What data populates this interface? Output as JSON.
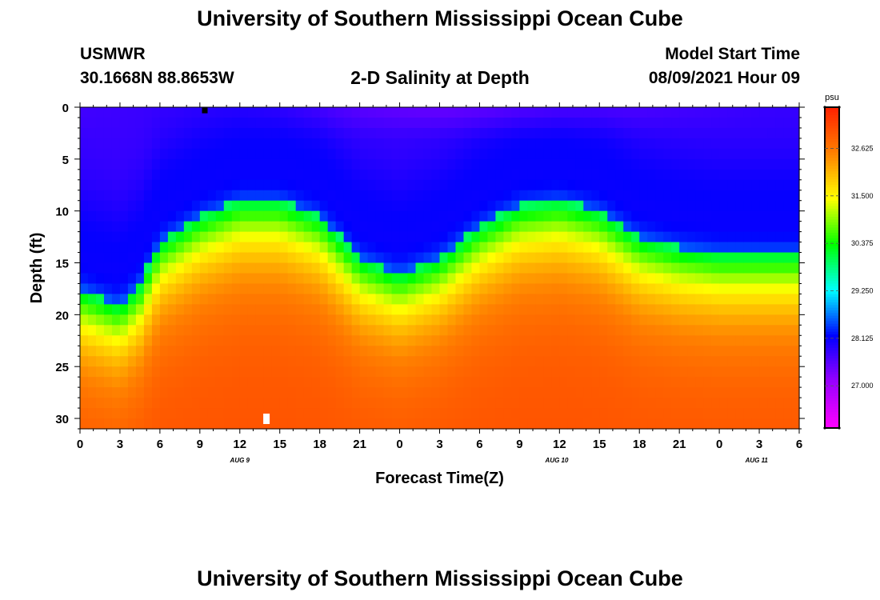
{
  "page": {
    "title": "University of Southern Mississippi Ocean Cube",
    "footer_title": "University of Southern Mississippi Ocean Cube"
  },
  "header": {
    "station": "USMWR",
    "coordinates": "30.1668N  88.8653W",
    "plot_title": "2-D Salinity at Depth",
    "model_start_label": "Model Start Time",
    "model_start_value": "08/09/2021 Hour 09"
  },
  "chart_data": {
    "type": "heatmap",
    "title": "2-D Salinity at Depth",
    "xlabel": "Forecast Time(Z)",
    "ylabel": "Depth (ft)",
    "x_range_hours": [
      0,
      54
    ],
    "x_ticks": [
      {
        "h": 0,
        "label": "0"
      },
      {
        "h": 3,
        "label": "3"
      },
      {
        "h": 6,
        "label": "6"
      },
      {
        "h": 9,
        "label": "9"
      },
      {
        "h": 12,
        "label": "12"
      },
      {
        "h": 15,
        "label": "15"
      },
      {
        "h": 18,
        "label": "18"
      },
      {
        "h": 21,
        "label": "21"
      },
      {
        "h": 24,
        "label": "0"
      },
      {
        "h": 27,
        "label": "3"
      },
      {
        "h": 30,
        "label": "6"
      },
      {
        "h": 33,
        "label": "9"
      },
      {
        "h": 36,
        "label": "12"
      },
      {
        "h": 39,
        "label": "15"
      },
      {
        "h": 42,
        "label": "18"
      },
      {
        "h": 45,
        "label": "21"
      },
      {
        "h": 48,
        "label": "0"
      },
      {
        "h": 51,
        "label": "3"
      },
      {
        "h": 54,
        "label": "6"
      }
    ],
    "date_labels": [
      {
        "h": 12,
        "label": "AUG 9"
      },
      {
        "h": 35.8,
        "label": "AUG 10"
      },
      {
        "h": 50.8,
        "label": "AUG 11"
      }
    ],
    "y_range_ft": [
      0,
      31
    ],
    "y_ticks": [
      0,
      5,
      10,
      15,
      20,
      25,
      30
    ],
    "colorbar": {
      "unit": "psu",
      "range": [
        26.0,
        33.6
      ],
      "tick_values": [
        32.625,
        31.5,
        30.375,
        29.25,
        28.125,
        27.0
      ],
      "tick_labels": [
        "32.625",
        "31.500",
        "30.375",
        "29.250",
        "28.125",
        "27.000"
      ],
      "colors": [
        "#ff00ff",
        "#9a00ff",
        "#0000ff",
        "#00ffff",
        "#00ff00",
        "#ffff00",
        "#ff8000",
        "#ff2000"
      ]
    },
    "halocline_depth_ft": [
      {
        "h": 0,
        "d": 17.5
      },
      {
        "h": 3,
        "d": 19.0
      },
      {
        "h": 4.5,
        "d": 17.0
      },
      {
        "h": 6,
        "d": 13.0
      },
      {
        "h": 9,
        "d": 10.5
      },
      {
        "h": 12,
        "d": 9.0
      },
      {
        "h": 15,
        "d": 9.0
      },
      {
        "h": 18,
        "d": 10.5
      },
      {
        "h": 21,
        "d": 14.5
      },
      {
        "h": 24,
        "d": 16.0
      },
      {
        "h": 27,
        "d": 14.5
      },
      {
        "h": 30,
        "d": 11.5
      },
      {
        "h": 33,
        "d": 9.5
      },
      {
        "h": 36,
        "d": 9.0
      },
      {
        "h": 39,
        "d": 10.0
      },
      {
        "h": 42,
        "d": 12.5
      },
      {
        "h": 45,
        "d": 13.5
      },
      {
        "h": 48,
        "d": 14.0
      },
      {
        "h": 51,
        "d": 14.0
      },
      {
        "h": 54,
        "d": 14.0
      }
    ],
    "markers": [
      {
        "h": 14.0,
        "d": 30.0,
        "color": "#ffffff",
        "kind": "bottom-marker"
      },
      {
        "h": 9.4,
        "d": 0.2,
        "color": "#000000",
        "kind": "surface-marker"
      }
    ]
  }
}
